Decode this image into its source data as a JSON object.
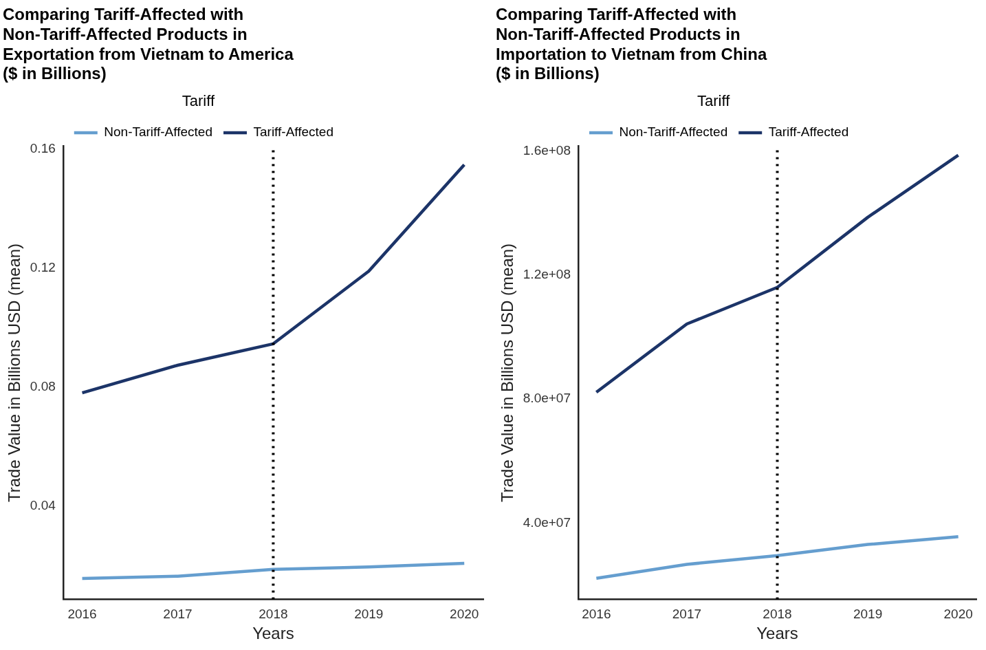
{
  "chart_data": [
    {
      "type": "line",
      "title": "Comparing Tariff-Affected with\nNon-Tariff-Affected Products in\nExportation from Vietnam to America\n($ in Billions)",
      "xlabel": "Years",
      "ylabel": "Trade Value in Billions USD (mean)",
      "legend_title": "Tariff",
      "legend": "top left",
      "grid": false,
      "marker": "none",
      "line_style": "solid",
      "xlim": [
        2015.8,
        2020.2
      ],
      "xticks": [
        2016,
        2017,
        2018,
        2019,
        2020
      ],
      "ylim": [
        0.0087,
        0.161
      ],
      "yticks": [
        0.04,
        0.08,
        0.12,
        0.16
      ],
      "series": [
        {
          "name": "Non-Tariff-Affected",
          "color": "#659ecf",
          "x": [
            2016,
            2017,
            2018,
            2019,
            2020
          ],
          "values": [
            0.0157,
            0.0165,
            0.0188,
            0.0196,
            0.0208
          ]
        },
        {
          "name": "Tariff-Affected",
          "color": "#1c3468",
          "x": [
            2016,
            2017,
            2018,
            2019,
            2020
          ],
          "values": [
            0.0781,
            0.0874,
            0.0946,
            0.119,
            0.1548
          ]
        }
      ],
      "ref_lines": [
        {
          "axis": "x",
          "value": 2018,
          "color": "#000000",
          "line_style": "dotted"
        }
      ]
    },
    {
      "type": "line",
      "title": "Comparing Tariff-Affected with\nNon-Tariff-Affected Products in\nImportation to Vietnam from China\n($ in Billions)",
      "xlabel": "Years",
      "ylabel": "Trade Value in Billions USD (mean)",
      "legend_title": "Tariff",
      "legend": "top left",
      "grid": false,
      "marker": "none",
      "line_style": "solid",
      "xlim": [
        2015.8,
        2020.2
      ],
      "xticks": [
        2016,
        2017,
        2018,
        2019,
        2020
      ],
      "ylim": [
        15400000,
        161500000
      ],
      "yticks": [
        {
          "value": 40000000,
          "label": "4.0e+07"
        },
        {
          "value": 80000000,
          "label": "8.0e+07"
        },
        {
          "value": 120000000,
          "label": "1.2e+08"
        },
        {
          "value": 160000000,
          "label": "1.6e+08"
        }
      ],
      "series": [
        {
          "name": "Non-Tariff-Affected",
          "color": "#659ecf",
          "x": [
            2016,
            2017,
            2018,
            2019,
            2020
          ],
          "values": [
            22200000,
            26700000,
            29500000,
            33100000,
            35600000
          ]
        },
        {
          "name": "Tariff-Affected",
          "color": "#1c3468",
          "x": [
            2016,
            2017,
            2018,
            2019,
            2020
          ],
          "values": [
            82200000,
            104200000,
            116000000,
            138600000,
            158600000
          ]
        }
      ],
      "ref_lines": [
        {
          "axis": "x",
          "value": 2018,
          "color": "#000000",
          "line_style": "dotted"
        }
      ]
    }
  ]
}
